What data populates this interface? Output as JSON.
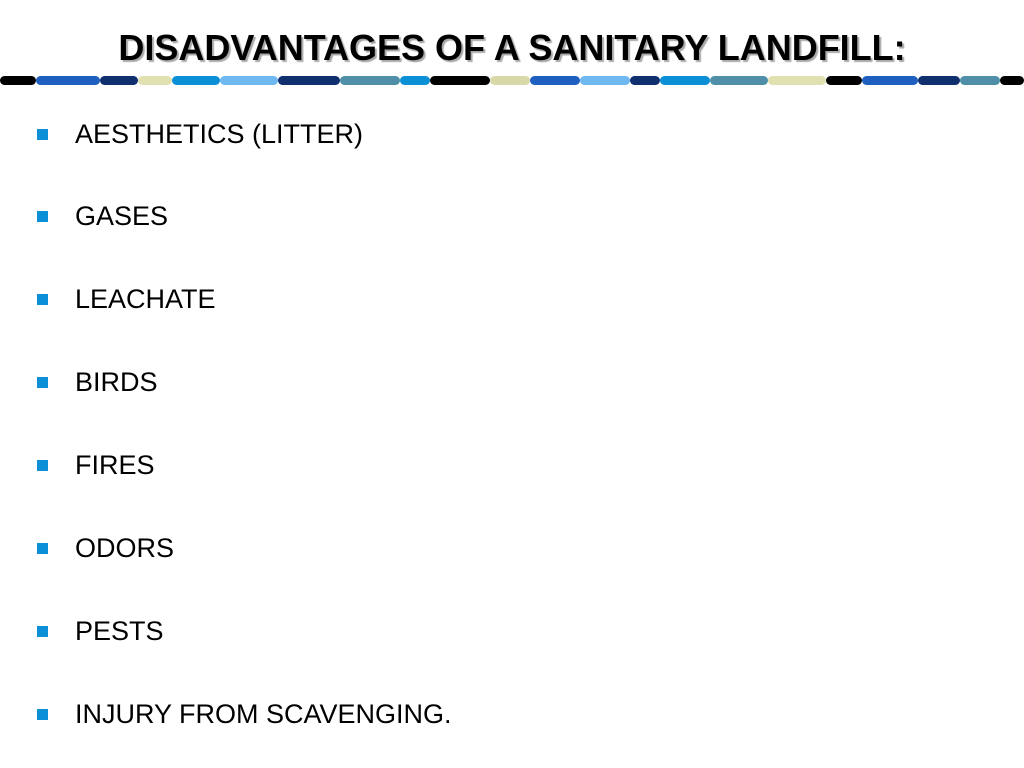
{
  "slide": {
    "title": "DISADVANTAGES OF A SANITARY LANDFILL:",
    "bullets": [
      "AESTHETICS (LITTER)",
      "GASES",
      "LEACHATE",
      "BIRDS",
      "FIRES",
      "ODORS",
      "PESTS",
      "INJURY FROM SCAVENGING."
    ]
  },
  "colors": {
    "title": "#000000",
    "bullet_marker": "#0b8fd6",
    "decor_bar": [
      "#000000",
      "#1f5fbf",
      "#0f2f6f",
      "#d8d8a8",
      "#0b8fd6",
      "#6fb8f0",
      "#4f8fa8",
      "#e0e0b0"
    ]
  },
  "icons": {
    "bullet_marker": "blue-square-bullet",
    "decor_bar": "segmented-rounded-stripe"
  }
}
